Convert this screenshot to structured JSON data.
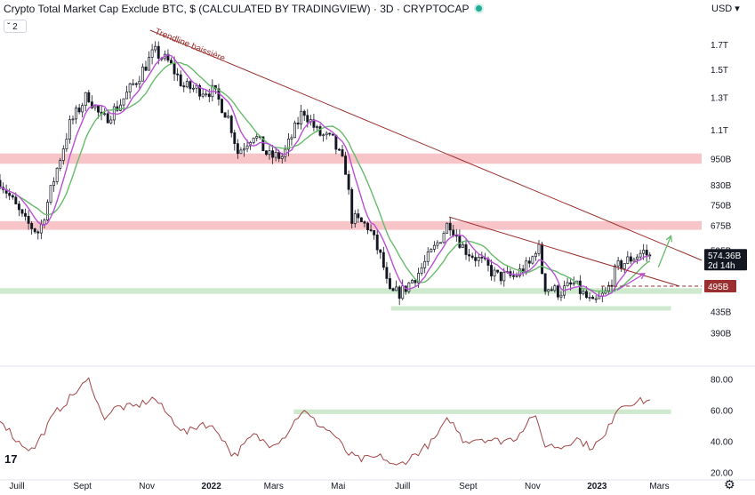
{
  "header": {
    "title": "Crypto Total Market Cap Exclude BTC, $ (CALCULATED BY TRADINGVIEW) · 3D · CRYPTOCAP",
    "currency": "USD",
    "currency_icon": "chevron-down-icon",
    "indicator_count": "2",
    "status_color": "#22ab94"
  },
  "chart_data": [
    {
      "type": "candlestick",
      "title": "Crypto Total Market Cap Exclude BTC, $ (CALCULATED BY TRADINGVIEW) · 3D · CRYPTOCAP",
      "yscale": "log",
      "ylim": [
        335,
        1950
      ],
      "y_ticks": [
        {
          "v": 1700,
          "label": "1.7T"
        },
        {
          "v": 1500,
          "label": "1.5T"
        },
        {
          "v": 1300,
          "label": "1.3T"
        },
        {
          "v": 1100,
          "label": "1.1T"
        },
        {
          "v": 950,
          "label": "950B"
        },
        {
          "v": 830,
          "label": "830B"
        },
        {
          "v": 750,
          "label": "750B"
        },
        {
          "v": 675,
          "label": "675B"
        },
        {
          "v": 595,
          "label": "595B"
        },
        {
          "v": 495,
          "label": "495B"
        },
        {
          "v": 435,
          "label": "435B"
        },
        {
          "v": 390,
          "label": "390B"
        }
      ],
      "x_ticks": [
        {
          "date": "2021-07-01",
          "label": "Juill",
          "bold": false
        },
        {
          "date": "2021-09-01",
          "label": "Sept",
          "bold": false
        },
        {
          "date": "2021-11-01",
          "label": "Nov",
          "bold": false
        },
        {
          "date": "2022-01-01",
          "label": "2022",
          "bold": true
        },
        {
          "date": "2022-03-01",
          "label": "Mars",
          "bold": false
        },
        {
          "date": "2022-05-01",
          "label": "Mai",
          "bold": false
        },
        {
          "date": "2022-07-01",
          "label": "Juill",
          "bold": false
        },
        {
          "date": "2022-09-01",
          "label": "Sept",
          "bold": false
        },
        {
          "date": "2022-11-01",
          "label": "Nov",
          "bold": false
        },
        {
          "date": "2023-01-01",
          "label": "2023",
          "bold": true
        },
        {
          "date": "2023-03-01",
          "label": "Mars",
          "bold": false
        }
      ],
      "x_range": [
        "2021-06-15",
        "2023-04-10"
      ],
      "price_path": [
        [
          "2021-06-15",
          850
        ],
        [
          "2021-06-26",
          770
        ],
        [
          "2021-07-08",
          690
        ],
        [
          "2021-07-22",
          650
        ],
        [
          "2021-08-06",
          870
        ],
        [
          "2021-08-20",
          1130
        ],
        [
          "2021-09-06",
          1320
        ],
        [
          "2021-09-20",
          1150
        ],
        [
          "2021-10-06",
          1250
        ],
        [
          "2021-10-22",
          1420
        ],
        [
          "2021-11-08",
          1640
        ],
        [
          "2021-11-22",
          1550
        ],
        [
          "2021-12-06",
          1370
        ],
        [
          "2021-12-22",
          1350
        ],
        [
          "2022-01-03",
          1340
        ],
        [
          "2022-01-18",
          1160
        ],
        [
          "2022-01-26",
          980
        ],
        [
          "2022-02-10",
          1080
        ],
        [
          "2022-02-24",
          960
        ],
        [
          "2022-03-10",
          960
        ],
        [
          "2022-03-29",
          1220
        ],
        [
          "2022-04-12",
          1080
        ],
        [
          "2022-04-26",
          1040
        ],
        [
          "2022-05-08",
          900
        ],
        [
          "2022-05-14",
          700
        ],
        [
          "2022-05-30",
          670
        ],
        [
          "2022-06-12",
          560
        ],
        [
          "2022-06-18",
          475
        ],
        [
          "2022-06-30",
          480
        ],
        [
          "2022-07-16",
          530
        ],
        [
          "2022-08-02",
          610
        ],
        [
          "2022-08-14",
          690
        ],
        [
          "2022-08-28",
          600
        ],
        [
          "2022-09-14",
          560
        ],
        [
          "2022-09-28",
          520
        ],
        [
          "2022-10-14",
          520
        ],
        [
          "2022-10-30",
          555
        ],
        [
          "2022-11-06",
          620
        ],
        [
          "2022-11-12",
          495
        ],
        [
          "2022-11-26",
          480
        ],
        [
          "2022-12-10",
          500
        ],
        [
          "2022-12-28",
          450
        ],
        [
          "2023-01-10",
          480
        ],
        [
          "2023-01-20",
          545
        ],
        [
          "2023-02-02",
          570
        ],
        [
          "2023-02-14",
          590
        ],
        [
          "2023-02-20",
          574
        ]
      ],
      "moving_averages": [
        {
          "color": "#66bb6a",
          "lag_days": 40
        },
        {
          "color": "#b84fd6",
          "lag_days": 20
        }
      ],
      "zones": [
        {
          "low": 925,
          "high": 975,
          "from": "2021-06-15",
          "to": "2023-04-10",
          "color": "#f7c5c7"
        },
        {
          "low": 660,
          "high": 690,
          "from": "2021-06-15",
          "to": "2023-04-10",
          "color": "#f7c5c7"
        },
        {
          "low": 476,
          "high": 490,
          "from": "2021-06-15",
          "to": "2023-04-10",
          "color": "#cfe9cf"
        },
        {
          "low": 437,
          "high": 447,
          "from": "2022-06-20",
          "to": "2023-03-12",
          "color": "#cfe9cf"
        }
      ],
      "trendlines": [
        {
          "from": [
            "2021-11-04",
            1830
          ],
          "to": [
            "2023-04-10",
            565
          ],
          "color": "#9b2e2e"
        },
        {
          "from": [
            "2022-08-14",
            705
          ],
          "to": [
            "2023-03-20",
            495
          ],
          "color": "#9b2e2e"
        }
      ],
      "arrows": [
        {
          "from": [
            "2023-02-28",
            545
          ],
          "to": [
            "2023-03-12",
            640
          ],
          "color": "#66bb6a"
        },
        {
          "from": [
            "2023-01-20",
            485
          ],
          "to": [
            "2023-02-15",
            528
          ],
          "color": "#b84fd6"
        }
      ],
      "dashed_level": {
        "value": 495,
        "from": "2023-01-05",
        "to": "2023-04-10",
        "color": "#9b2e2e"
      },
      "annotations": [
        {
          "text": "Trendline baissière",
          "at": [
            "2021-11-08",
            1800
          ],
          "angle": 22,
          "color": "#9b2e2e"
        }
      ],
      "last_price": {
        "value": 574.36,
        "label": "574.36B",
        "countdown": "2d 14h"
      },
      "level_tag": {
        "value": 495,
        "label": "495B",
        "color": "#9b2e2e"
      }
    },
    {
      "type": "line",
      "series_color": "#a04545",
      "ylim": [
        15,
        85
      ],
      "y_ticks": [
        80,
        60,
        40,
        20
      ],
      "y_tick_labels": [
        "80.00",
        "60.00",
        "40.00",
        "20.00"
      ],
      "zone": {
        "low": 57.5,
        "high": 60.5,
        "from": "2022-03-20",
        "to": "2023-03-12",
        "color": "#cfe9cf"
      },
      "x_range": [
        "2021-06-15",
        "2023-04-10"
      ],
      "rsi_path": [
        [
          "2021-06-15",
          55
        ],
        [
          "2021-07-01",
          40
        ],
        [
          "2021-07-16",
          34
        ],
        [
          "2021-08-06",
          58
        ],
        [
          "2021-08-26",
          72
        ],
        [
          "2021-09-08",
          80
        ],
        [
          "2021-09-20",
          55
        ],
        [
          "2021-10-04",
          62
        ],
        [
          "2021-10-20",
          62
        ],
        [
          "2021-11-08",
          68
        ],
        [
          "2021-11-22",
          56
        ],
        [
          "2021-12-08",
          45
        ],
        [
          "2021-12-24",
          52
        ],
        [
          "2022-01-08",
          46
        ],
        [
          "2022-01-22",
          30
        ],
        [
          "2022-02-10",
          44
        ],
        [
          "2022-02-24",
          38
        ],
        [
          "2022-03-10",
          42
        ],
        [
          "2022-03-28",
          60
        ],
        [
          "2022-04-10",
          52
        ],
        [
          "2022-04-26",
          45
        ],
        [
          "2022-05-10",
          32
        ],
        [
          "2022-05-22",
          28
        ],
        [
          "2022-06-12",
          30
        ],
        [
          "2022-06-24",
          23
        ],
        [
          "2022-07-10",
          30
        ],
        [
          "2022-07-30",
          40
        ],
        [
          "2022-08-14",
          55
        ],
        [
          "2022-08-28",
          40
        ],
        [
          "2022-09-12",
          42
        ],
        [
          "2022-09-30",
          40
        ],
        [
          "2022-10-16",
          42
        ],
        [
          "2022-11-02",
          58
        ],
        [
          "2022-11-12",
          38
        ],
        [
          "2022-11-28",
          36
        ],
        [
          "2022-12-12",
          42
        ],
        [
          "2022-12-26",
          36
        ],
        [
          "2023-01-08",
          42
        ],
        [
          "2023-01-20",
          62
        ],
        [
          "2023-02-02",
          65
        ],
        [
          "2023-02-14",
          66
        ],
        [
          "2023-02-20",
          66
        ]
      ]
    }
  ],
  "footer": {
    "logo_text": "17",
    "settings_icon": "gear-icon"
  }
}
